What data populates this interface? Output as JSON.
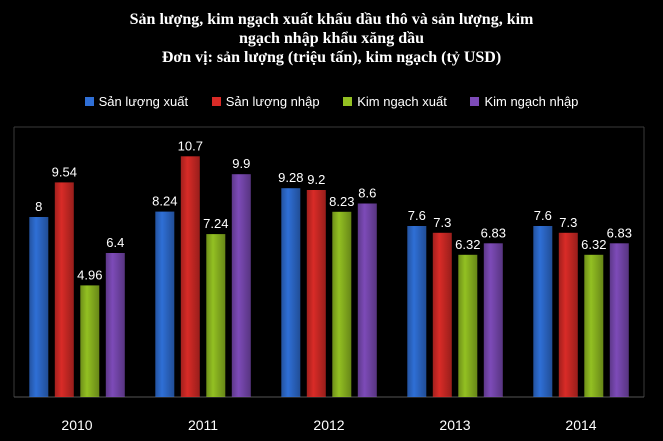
{
  "chart_data": {
    "type": "bar",
    "title_lines": [
      "Sản lượng, kim ngạch xuất khẩu dầu thô và sản lượng, kim",
      "ngạch nhập khẩu xăng dầu",
      "Đơn vị: sản lượng (triệu tấn), kim ngạch (tỷ USD)"
    ],
    "categories": [
      "2010",
      "2011",
      "2012",
      "2013",
      "2014"
    ],
    "series": [
      {
        "name": "Sản lượng xuất",
        "values": [
          8,
          8.24,
          9.28,
          7.6,
          7.6
        ],
        "color": "#2f6fd6",
        "icon": "blue-bar-swatch"
      },
      {
        "name": "Sản lượng nhập",
        "values": [
          9.54,
          10.7,
          9.2,
          7.3,
          7.3
        ],
        "color": "#d92b27",
        "icon": "red-bar-swatch"
      },
      {
        "name": "Kim ngạch xuất",
        "values": [
          4.96,
          7.24,
          8.23,
          6.32,
          6.32
        ],
        "color": "#93c022",
        "icon": "green-bar-swatch"
      },
      {
        "name": "Kim ngạch nhập",
        "values": [
          6.4,
          9.9,
          8.6,
          6.83,
          6.83
        ],
        "color": "#7d4bb8",
        "icon": "purple-bar-swatch"
      }
    ],
    "ylim": [
      0,
      12
    ],
    "grid": false,
    "legend_position": "top",
    "xlabel": "",
    "ylabel": ""
  }
}
